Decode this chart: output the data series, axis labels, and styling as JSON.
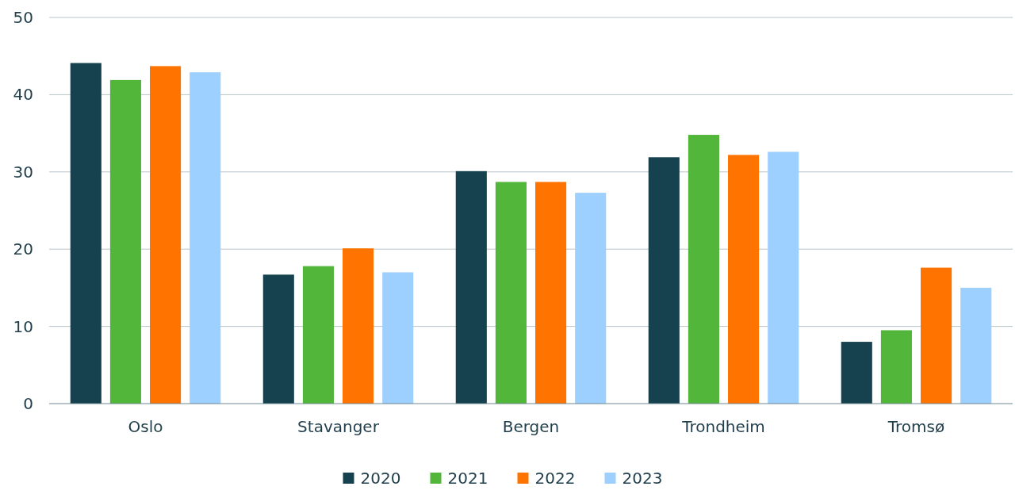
{
  "chart_data": {
    "type": "bar",
    "categories": [
      "Oslo",
      "Stavanger",
      "Bergen",
      "Trondheim",
      "Tromsø"
    ],
    "series": [
      {
        "name": "2020",
        "color": "#16424f",
        "values": [
          44.1,
          16.7,
          30.1,
          31.9,
          8.0
        ]
      },
      {
        "name": "2021",
        "color": "#52b63a",
        "values": [
          41.9,
          17.8,
          28.7,
          34.8,
          9.5
        ]
      },
      {
        "name": "2022",
        "color": "#ff7300",
        "values": [
          43.7,
          20.1,
          28.7,
          32.2,
          17.6
        ]
      },
      {
        "name": "2023",
        "color": "#9ed0ff",
        "values": [
          42.9,
          17.0,
          27.3,
          32.6,
          15.0
        ]
      }
    ],
    "ylim": [
      0,
      50
    ],
    "yticks": [
      0,
      10,
      20,
      30,
      40,
      50
    ],
    "grid": "y",
    "legend": "bottom"
  }
}
